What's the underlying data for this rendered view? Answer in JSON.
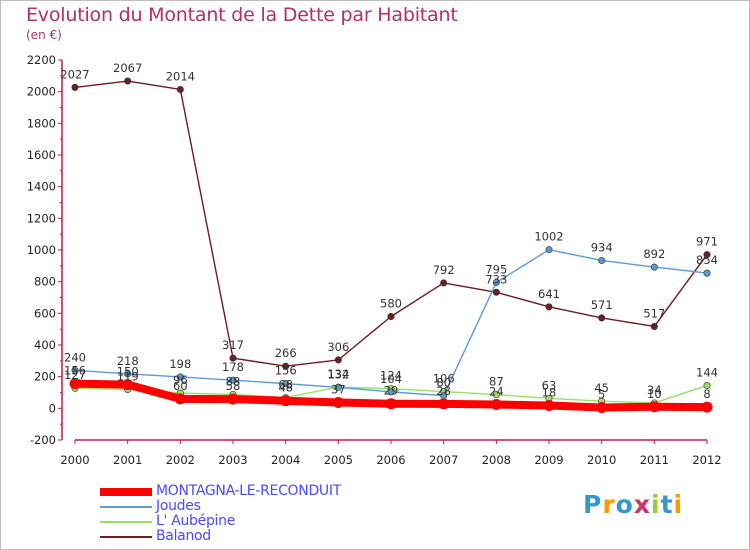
{
  "title": "Evolution du Montant de la Dette par Habitant",
  "unit": "(en €)",
  "brand": {
    "text": "Proxiti",
    "colors": [
      "#3399cc",
      "#ff9900",
      "#3399cc",
      "#cc3366",
      "#99cc33",
      "#3399cc",
      "#ff9900"
    ]
  },
  "chart_data": {
    "type": "line",
    "title": "Evolution du Montant de la Dette par Habitant",
    "ylabel": "(en €)",
    "xlabel": "",
    "categories": [
      "2000",
      "2001",
      "2002",
      "2003",
      "2004",
      "2005",
      "2006",
      "2007",
      "2008",
      "2009",
      "2010",
      "2011",
      "2012"
    ],
    "ylim": [
      -200,
      2200
    ],
    "yticks": [
      -200,
      0,
      200,
      400,
      600,
      800,
      1000,
      1200,
      1400,
      1600,
      1800,
      2000,
      2200
    ],
    "grid": "none",
    "legend_position": "bottom-left",
    "series": [
      {
        "name": "MONTAGNA-LE-RECONDUIT",
        "color": "#ff0000",
        "values": [
          156,
          150,
          60,
          58,
          48,
          37,
          29,
          28,
          24,
          18,
          5,
          10,
          8
        ]
      },
      {
        "name": "Joudes",
        "color": "#5b9bd5",
        "values": [
          240,
          218,
          198,
          178,
          156,
          132,
          104,
          80,
          795,
          1002,
          934,
          892,
          854
        ]
      },
      {
        "name": "L' Aubépine",
        "color": "#99e066",
        "values": [
          127,
          119,
          96,
          88,
          68,
          134,
          124,
          106,
          87,
          63,
          45,
          34,
          144
        ]
      },
      {
        "name": "Balanod",
        "color": "#6b1f1f",
        "values": [
          2027,
          2067,
          2014,
          317,
          266,
          306,
          580,
          792,
          733,
          641,
          571,
          517,
          971
        ]
      }
    ]
  }
}
